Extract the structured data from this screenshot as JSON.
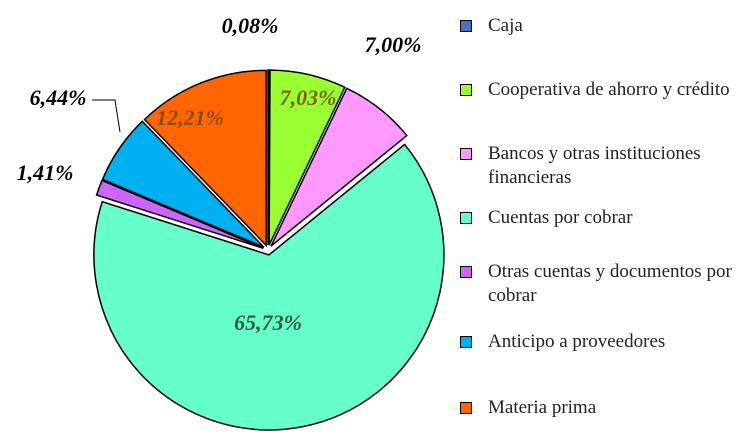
{
  "chart_data": {
    "type": "pie",
    "categories": [
      "Caja",
      "Cooperativa de ahorro y crédito",
      "Bancos y otras instituciones financieras",
      "Cuentas por cobrar",
      "Otras cuentas y documentos por cobrar",
      "Anticipo a proveedores",
      "Materia prima"
    ],
    "values": [
      0.08,
      7.03,
      7.0,
      65.73,
      1.41,
      6.44,
      12.21
    ],
    "value_labels": [
      "0,08%",
      "7,03%",
      "7,00%",
      "65,73%",
      "1,41%",
      "6,44%",
      "12,21%"
    ],
    "colors": [
      "#4472c4",
      "#99ff33",
      "#ff99ff",
      "#66ffcc",
      "#cc66ff",
      "#00b0f0",
      "#ff6600"
    ],
    "legend": "right"
  }
}
